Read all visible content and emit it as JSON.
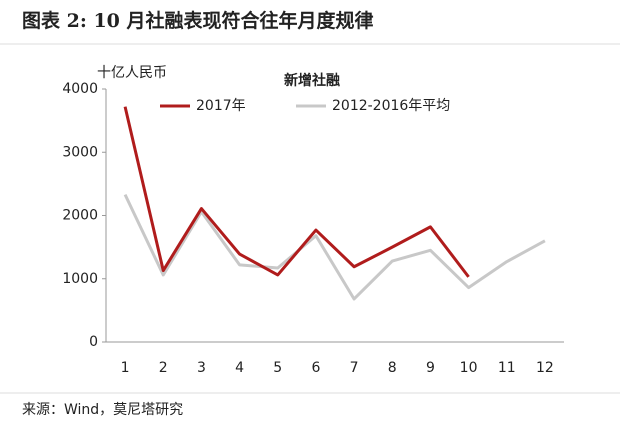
{
  "chart_data": {
    "type": "line",
    "title": "图表 2: 10 月社融表现符合往年月度规律",
    "subtitle": "新增社融",
    "y_label": "十亿人民币",
    "source": "来源：Wind，莫尼塔研究",
    "categories": [
      "1",
      "2",
      "3",
      "4",
      "5",
      "6",
      "7",
      "8",
      "9",
      "10",
      "11",
      "12"
    ],
    "series": [
      {
        "name": "2017年",
        "color": "#b01c1c",
        "values": [
          3720,
          1130,
          2110,
          1390,
          1060,
          1770,
          1190,
          1500,
          1820,
          1030,
          null,
          null
        ]
      },
      {
        "name": "2012-2016年平均",
        "color": "#c8c8c8",
        "values": [
          2330,
          1060,
          2060,
          1220,
          1170,
          1680,
          680,
          1280,
          1450,
          860,
          1270,
          1600
        ]
      }
    ],
    "ylim": [
      0,
      4000
    ],
    "yticks": [
      0,
      1000,
      2000,
      3000,
      4000
    ],
    "grid": false
  }
}
